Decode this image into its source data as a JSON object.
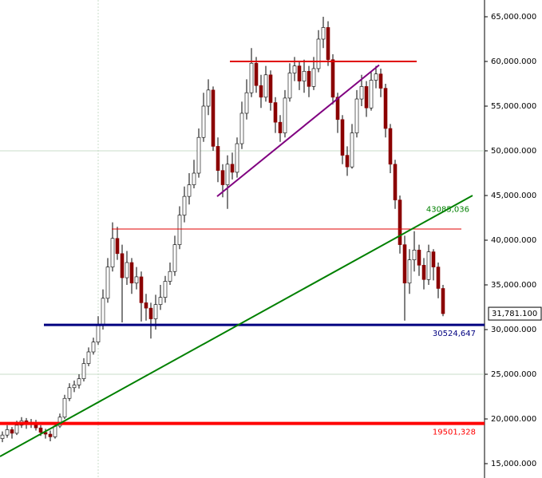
{
  "chart_data": {
    "type": "candlestick",
    "ylim": [
      15000,
      65000
    ],
    "yticks": [
      {
        "value": 15000,
        "label": "15,000.000"
      },
      {
        "value": 20000,
        "label": "20,000.000"
      },
      {
        "value": 25000,
        "label": "25,000.000"
      },
      {
        "value": 30000,
        "label": "30,000.000"
      },
      {
        "value": 35000,
        "label": "35,000.000"
      },
      {
        "value": 40000,
        "label": "40,000.000"
      },
      {
        "value": 45000,
        "label": "45,000.000"
      },
      {
        "value": 50000,
        "label": "50,000.000"
      },
      {
        "value": 55000,
        "label": "55,000.000"
      },
      {
        "value": 60000,
        "label": "60,000.000"
      },
      {
        "value": 65000,
        "label": "65,000.000"
      }
    ],
    "gridlines": [
      25000,
      50000
    ],
    "up_color": "#ffffff",
    "down_color": "#8b0000",
    "open": [
      17800,
      18200,
      18800,
      18400,
      19300,
      19800,
      19400,
      19600,
      19000,
      18500,
      18300,
      18000,
      19200,
      20200,
      22300,
      23500,
      23800,
      24500,
      26200,
      27500,
      28600,
      30500,
      33500,
      37000,
      40200,
      38500,
      35800,
      37500,
      35200,
      35900,
      33000,
      32400,
      31200,
      32800,
      33600,
      35400,
      36500,
      39500,
      42800,
      44900,
      46200,
      47500,
      51500,
      55000,
      56800,
      50500,
      47800,
      46200,
      48500,
      47600,
      50800,
      54200,
      56500,
      59800,
      57300,
      56000,
      58500,
      55400,
      53200,
      52000,
      55900,
      58700,
      59500,
      57800,
      58900,
      57200,
      59200,
      62500,
      63800,
      60200,
      56000,
      53500,
      49500,
      48200,
      52000,
      55800,
      57200,
      54800,
      57900,
      58600,
      57000,
      52500,
      48500,
      44500,
      39500,
      35200,
      37800,
      38900,
      37200,
      35600,
      38700,
      37000,
      34600
    ],
    "high": [
      18600,
      19300,
      19100,
      19800,
      20200,
      20100,
      20000,
      19900,
      19300,
      18900,
      18700,
      19500,
      20600,
      22700,
      24000,
      24300,
      25000,
      26800,
      28000,
      29100,
      31500,
      34500,
      38000,
      42000,
      41500,
      39500,
      38800,
      38000,
      37000,
      36500,
      34000,
      33000,
      33900,
      35000,
      36000,
      37500,
      40500,
      43800,
      46000,
      47500,
      49000,
      52500,
      56500,
      58000,
      57200,
      51500,
      48500,
      49500,
      49800,
      51500,
      55500,
      58000,
      61500,
      60500,
      58500,
      59500,
      59000,
      56000,
      54000,
      56800,
      59800,
      60500,
      60000,
      60200,
      59500,
      60500,
      63500,
      65000,
      64500,
      60800,
      56500,
      54000,
      50500,
      53000,
      56800,
      58500,
      57800,
      58800,
      59500,
      59200,
      57500,
      53000,
      49000,
      45000,
      40500,
      39000,
      41000,
      39500,
      38000,
      39500,
      39000,
      37500,
      35000
    ],
    "low": [
      17400,
      17900,
      17800,
      18200,
      19000,
      18900,
      19000,
      18700,
      18100,
      17800,
      17500,
      17800,
      19000,
      20000,
      22000,
      23000,
      23400,
      24200,
      25900,
      27200,
      28300,
      30000,
      33000,
      36500,
      37800,
      30800,
      35000,
      34000,
      34500,
      30900,
      31000,
      29000,
      30000,
      32200,
      33000,
      35000,
      36000,
      39000,
      42000,
      44000,
      45800,
      47000,
      51000,
      54000,
      50000,
      46500,
      44800,
      43500,
      46800,
      47000,
      50200,
      53500,
      56000,
      56500,
      54800,
      55500,
      54500,
      52000,
      51000,
      51500,
      55500,
      57800,
      56800,
      56500,
      56000,
      56800,
      58800,
      61500,
      59500,
      55200,
      52000,
      48500,
      47200,
      48000,
      51500,
      55000,
      53800,
      54500,
      57000,
      56000,
      51500,
      47500,
      43500,
      38500,
      31000,
      34000,
      36500,
      36000,
      34500,
      35000,
      35500,
      33500,
      31500
    ],
    "close": [
      18200,
      18800,
      18400,
      19300,
      19800,
      19400,
      19600,
      19000,
      18500,
      18300,
      18000,
      19200,
      20200,
      22300,
      23500,
      23800,
      24500,
      26200,
      27500,
      28600,
      30500,
      33500,
      37000,
      40200,
      38500,
      35800,
      37500,
      35200,
      35900,
      33000,
      32400,
      31200,
      32800,
      33600,
      35400,
      36500,
      39500,
      42800,
      44900,
      46200,
      47500,
      51500,
      55000,
      56800,
      50500,
      47800,
      46200,
      48500,
      47600,
      50800,
      54200,
      56500,
      59800,
      57300,
      56000,
      58500,
      55400,
      53200,
      52000,
      55900,
      58700,
      59500,
      57800,
      58900,
      57200,
      59200,
      62500,
      63800,
      60200,
      56000,
      53500,
      49500,
      48200,
      52000,
      55800,
      57200,
      54800,
      57900,
      58600,
      57000,
      52500,
      48500,
      44500,
      39500,
      35200,
      37800,
      38900,
      37200,
      35600,
      38700,
      37000,
      34600,
      31781.1
    ],
    "levels": [
      {
        "value": 60000,
        "color": "#e00000",
        "width": 2
      },
      {
        "value": 41250,
        "color": "#e00000",
        "width": 1
      },
      {
        "value": 30524.647,
        "label": "30524,647",
        "color": "#000080",
        "width": 3
      },
      {
        "value": 19501.328,
        "label": "19501,328",
        "color": "#ff0000",
        "width": 4
      }
    ],
    "trendlines": [
      {
        "from": 15800,
        "to": 45000,
        "color": "#008000",
        "label": "43085,036",
        "value": 43085.036
      },
      {
        "from": 44900,
        "to": 59600,
        "color": "#800080"
      }
    ],
    "last": {
      "value": 31781.1,
      "label": "31,781.100"
    }
  }
}
